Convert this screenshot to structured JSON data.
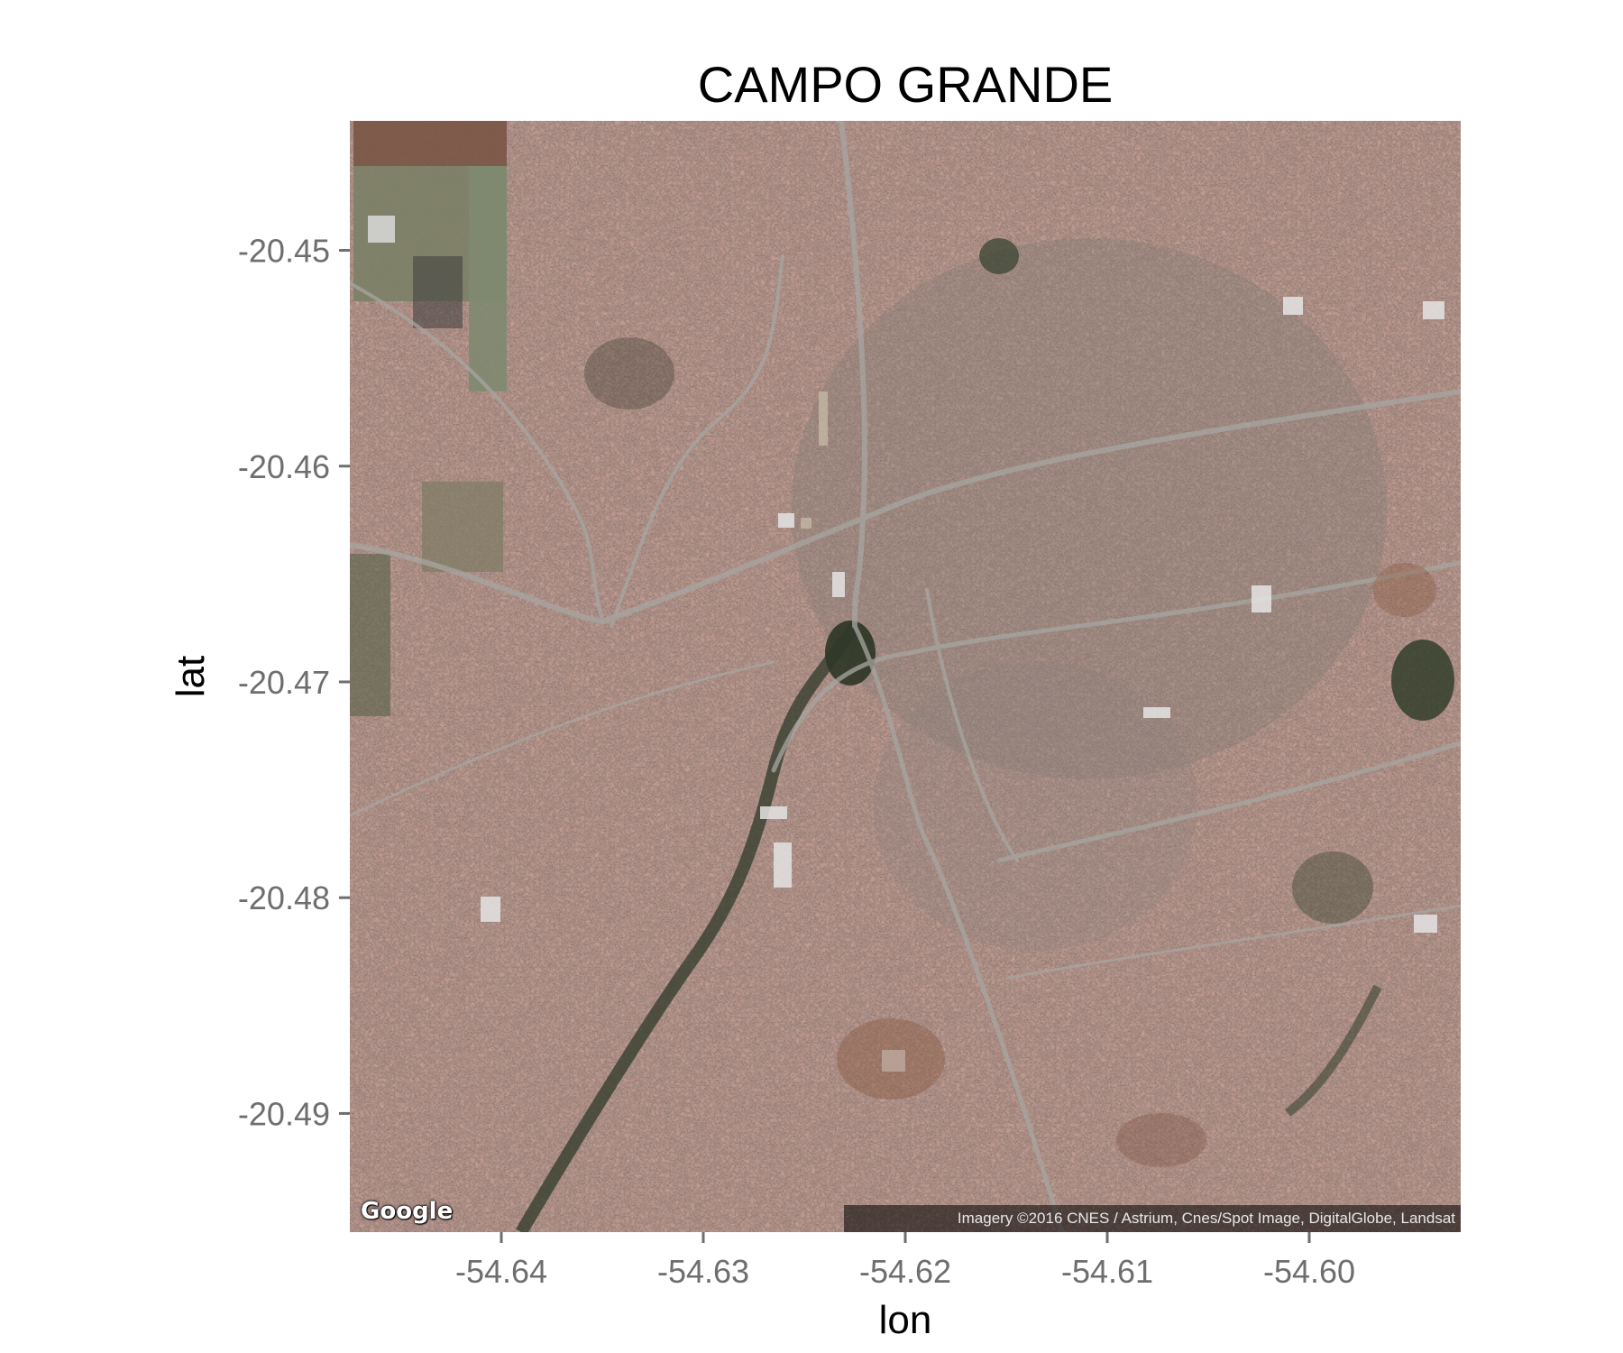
{
  "map": {
    "title": "CAMPO GRANDE",
    "type": "satellite",
    "provider_logo": "Google",
    "attribution": "Imagery ©2016 CNES / Astrium, Cnes/Spot Image, DigitalGlobe, Landsat",
    "x_axis": {
      "label": "lon",
      "range": [
        -54.6475,
        -54.5925
      ],
      "ticks": [
        -54.64,
        -54.63,
        -54.62,
        -54.61,
        -54.6
      ],
      "tick_labels": [
        "-54.64",
        "-54.63",
        "-54.62",
        "-54.61",
        "-54.60"
      ]
    },
    "y_axis": {
      "label": "lat",
      "range": [
        -20.4955,
        -20.444
      ],
      "ticks": [
        -20.45,
        -20.46,
        -20.47,
        -20.48,
        -20.49
      ],
      "tick_labels": [
        "-20.45",
        "-20.46",
        "-20.47",
        "-20.48",
        "-20.49"
      ]
    },
    "colors": {
      "urban_base": "#5a4a42",
      "roof_red": "#8a5a48",
      "road": "#9a9a9a",
      "vegetation": "#3b4a33",
      "axis_text": "#6e6e6e"
    }
  }
}
